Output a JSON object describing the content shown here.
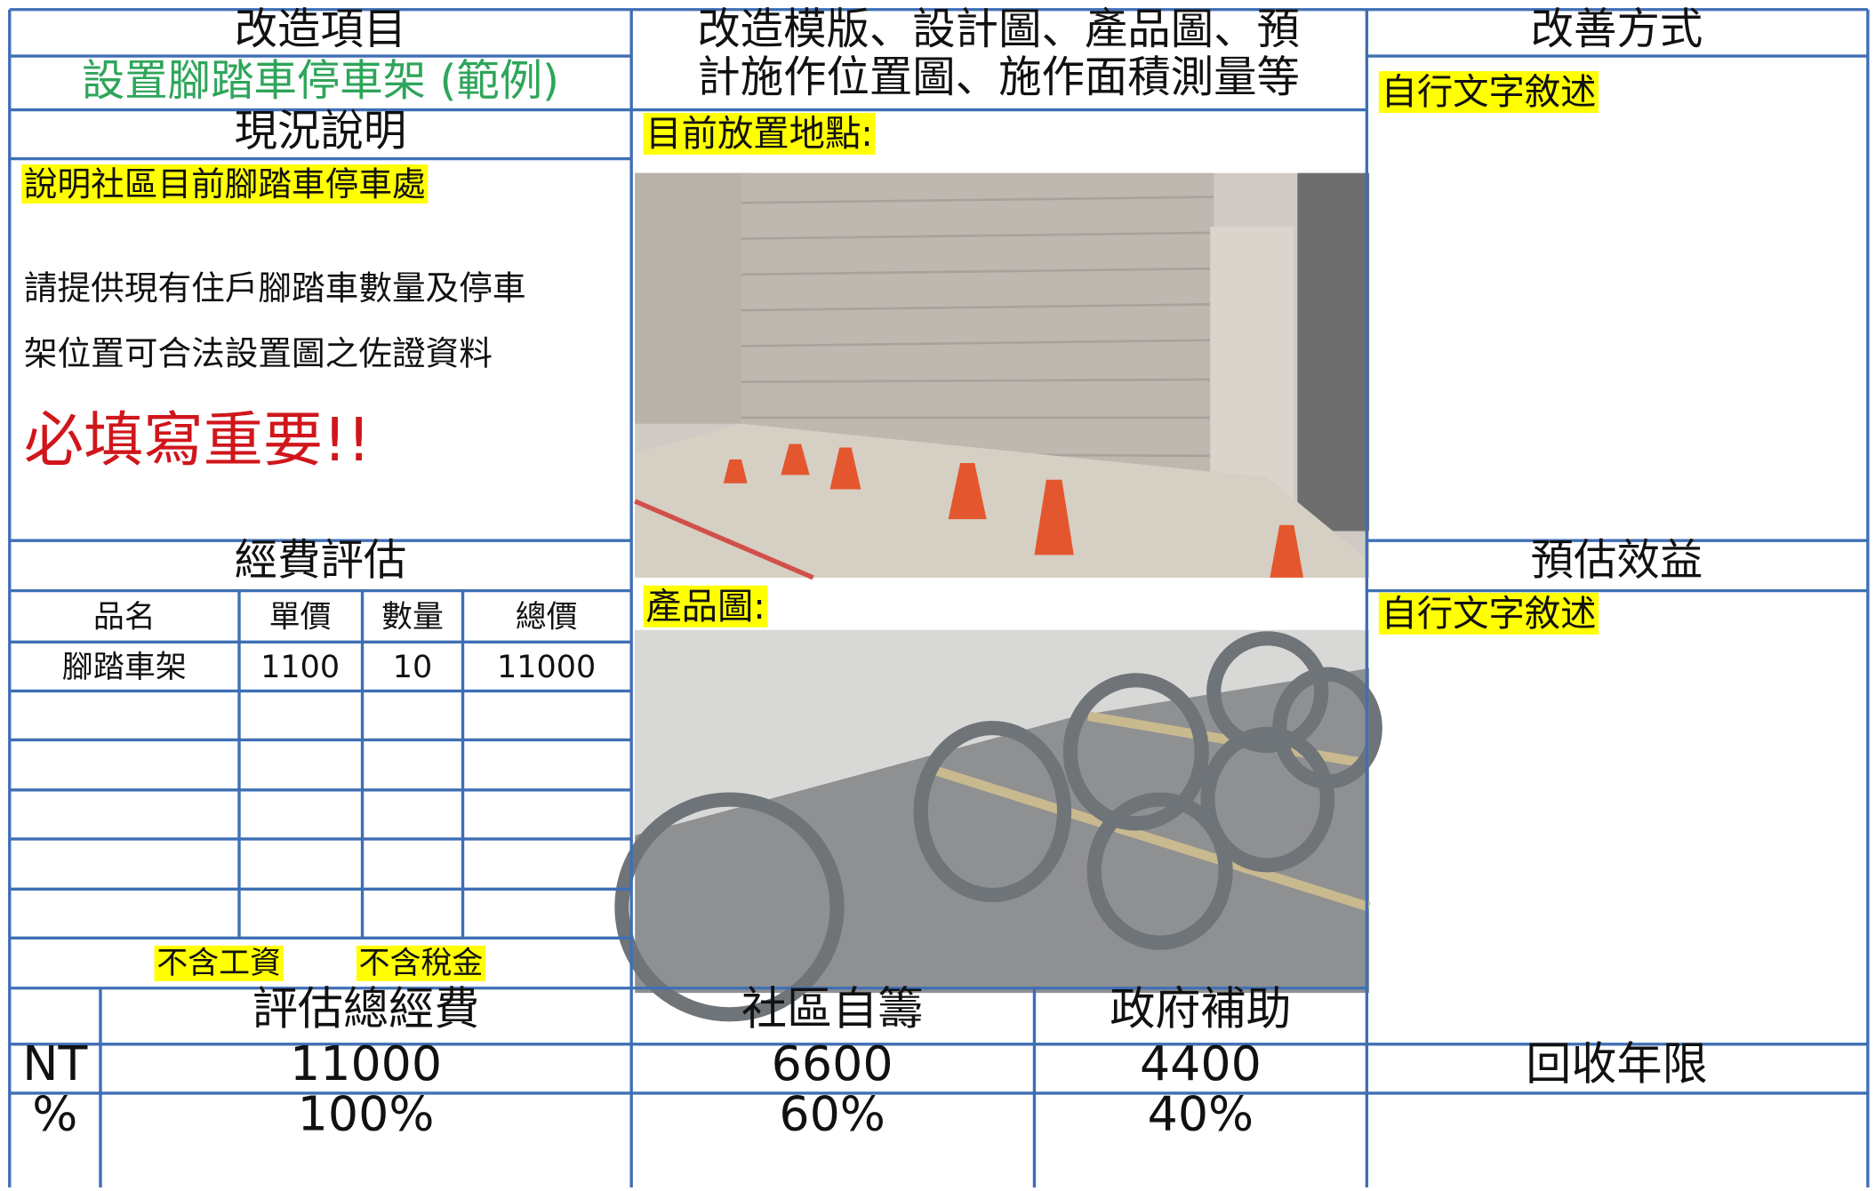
{
  "header": {
    "project_label": "改造項目",
    "template_lines": [
      "改造模版、設計圖、產品圖、預",
      "計施作位置圖、施作面積測量等"
    ],
    "improvement_label": "改善方式"
  },
  "project_name": "設置腳踏車停車架 (範例)",
  "current_status": {
    "label": "現況說明",
    "highlight": "說明社區目前腳踏車停車處",
    "lines": [
      "請提供現有住戶腳踏車數量及停車",
      "架位置可合法設置圖之佐證資料"
    ],
    "warning": "必填寫重要!!"
  },
  "location": {
    "label": "目前放置地點:"
  },
  "product": {
    "label": "產品圖:"
  },
  "improvement": {
    "text": "自行文字敘述"
  },
  "benefit": {
    "label": "預估效益",
    "text": "自行文字敘述"
  },
  "cost": {
    "label": "經費評估",
    "columns": [
      "品名",
      "單價",
      "數量",
      "總價"
    ],
    "rows": [
      [
        "腳踏車架",
        1100,
        10,
        11000
      ]
    ],
    "note": [
      "不含工資",
      "不含稅金"
    ]
  },
  "summary": {
    "total_label": "評估總經費",
    "self_label": "社區自籌",
    "gov_label": "政府補助",
    "payback_label": "回收年限",
    "rows": [
      {
        "label": "NT",
        "total": 11000,
        "self": 6600,
        "gov": 4400
      },
      {
        "label": "%",
        "total": "100%",
        "self": "60%",
        "gov": "40%"
      }
    ]
  }
}
